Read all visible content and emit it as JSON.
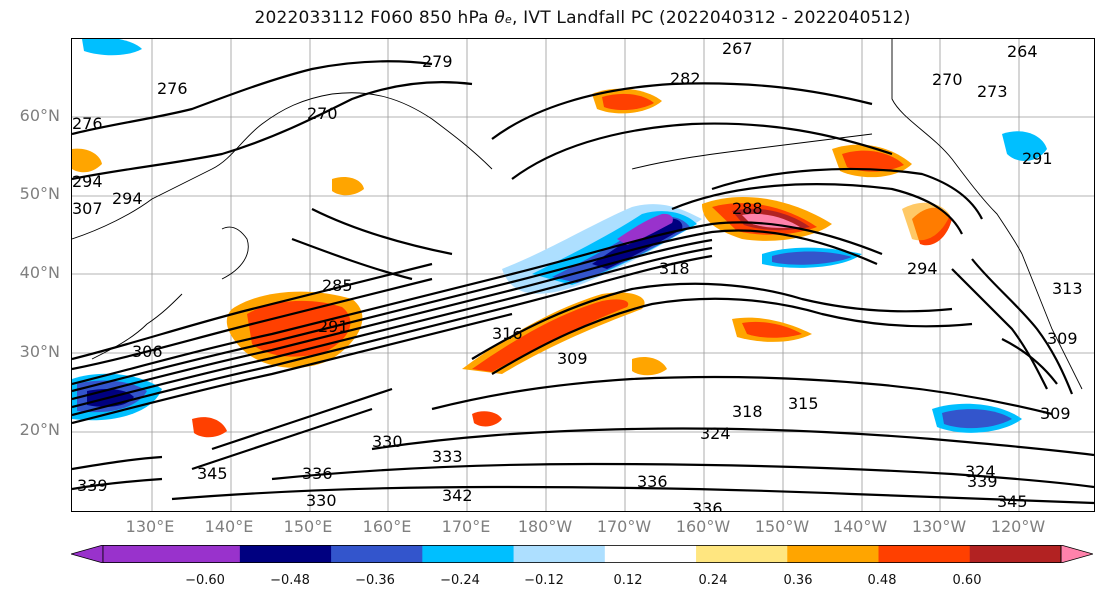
{
  "title": {
    "prefix": "2022033112 F060 850 hPa ",
    "symbol": "θ",
    "symbol_sub": "e",
    "suffix": ", IVT Landfall PC (2022040312 - 2022040512)"
  },
  "lat_labels": [
    "60°N",
    "50°N",
    "40°N",
    "30°N",
    "20°N"
  ],
  "lon_labels": [
    "130°E",
    "140°E",
    "150°E",
    "160°E",
    "170°E",
    "180°W",
    "170°W",
    "160°W",
    "150°W",
    "140°W",
    "130°W",
    "120°W"
  ],
  "contour_labels": [
    "279",
    "276",
    "276",
    "282",
    "294",
    "294",
    "270",
    "267",
    "264",
    "270",
    "273",
    "291",
    "285",
    "291",
    "288",
    "294",
    "318",
    "306",
    "309",
    "318",
    "315",
    "324",
    "330",
    "333",
    "336",
    "330",
    "336",
    "342",
    "345",
    "339",
    "339",
    "336",
    "324",
    "345",
    "313",
    "309",
    "309",
    "316",
    "307"
  ],
  "colorbar": {
    "ticks": [
      "−0.60",
      "−0.48",
      "−0.36",
      "−0.24",
      "−0.12",
      "0.12",
      "0.24",
      "0.36",
      "0.48",
      "0.60"
    ],
    "colors": [
      "#9932CC",
      "#000080",
      "#3355CC",
      "#00BFFF",
      "#ADDFFF",
      "#FFFFFF",
      "#FFE680",
      "#FFA500",
      "#FF4000",
      "#B22222",
      "#FF82AB"
    ]
  }
}
